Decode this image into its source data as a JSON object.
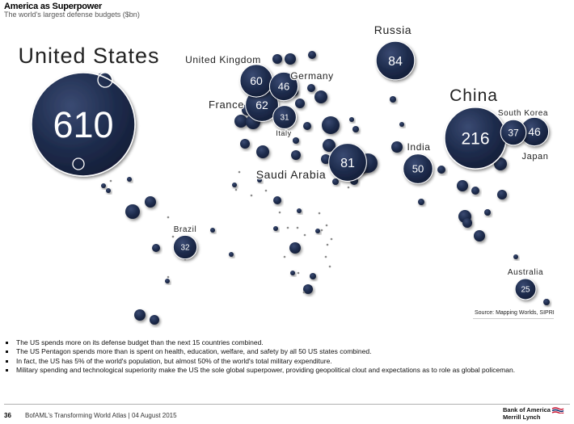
{
  "header": {
    "title": "America as Superpower",
    "subtitle": "The world's largest defense budgets ($bn)"
  },
  "chart_data": {
    "type": "bubble-map",
    "unit": "$bn",
    "accent_color": "#1f2d4e",
    "countries": [
      {
        "name": "United States",
        "value": 610
      },
      {
        "name": "China",
        "value": 216
      },
      {
        "name": "Russia",
        "value": 84
      },
      {
        "name": "Saudi Arabia",
        "value": 81
      },
      {
        "name": "France",
        "value": 62
      },
      {
        "name": "United Kingdom",
        "value": 60
      },
      {
        "name": "India",
        "value": 50
      },
      {
        "name": "Germany",
        "value": 46
      },
      {
        "name": "Japan",
        "value": 46
      },
      {
        "name": "South Korea",
        "value": 37
      },
      {
        "name": "Brazil",
        "value": 32
      },
      {
        "name": "Italy",
        "value": 31
      },
      {
        "name": "Australia",
        "value": 25
      }
    ]
  },
  "source": "Source: Mapping Worlds, SIPRI",
  "bullets": [
    "The US spends more on its defense budget than the next 15 countries combined.",
    "The US Pentagon spends more than is spent on health, education, welfare, and safety by all 50 US states combined.",
    "In fact, the US has 5% of the world's population, but almost 50% of the world's total military expenditure.",
    "Military spending and technological superiority make the US the sole global superpower, providing geopolitical clout and expectations as to role as global policeman."
  ],
  "footer": {
    "page_number": "36",
    "text": "BofAML's Transforming World Atlas | 04 August 2015",
    "logo_line1": "Bank of America",
    "logo_line2": "Merrill Lynch"
  }
}
